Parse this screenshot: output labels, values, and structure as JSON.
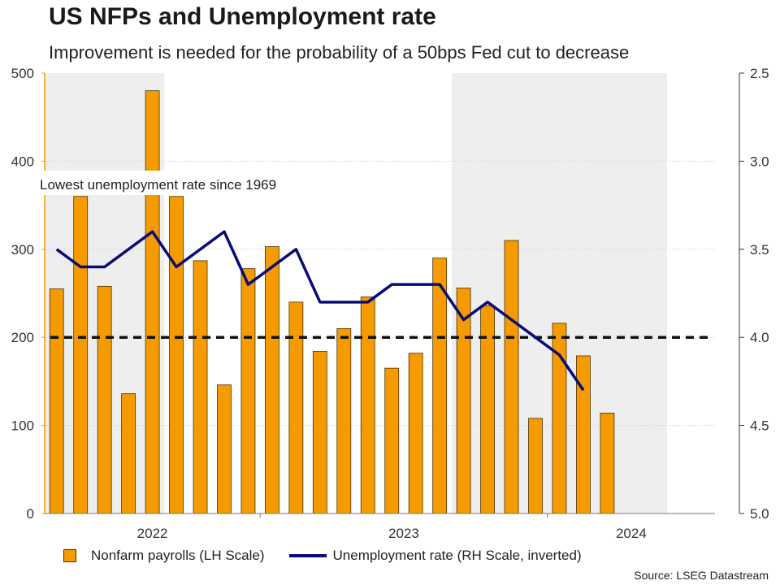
{
  "header": {
    "title": "US NFPs and Unemployment rate",
    "subtitle": "Improvement is needed for the probability of a 50bps Fed cut to decrease"
  },
  "source": "Source: LSEG Datastream",
  "legend": {
    "bars": "Nonfarm payrolls (LH Scale)",
    "line": "Unemployment rate (RH Scale, inverted)"
  },
  "colors": {
    "bar": "#f59b00",
    "bar_edge": "#4a2f00",
    "line": "#0a0a78",
    "reference": "#111111",
    "shade": "#eeeeee"
  },
  "chart_data": {
    "type": "bar",
    "x": [
      "2022-04",
      "2022-05",
      "2022-06",
      "2022-07",
      "2022-08",
      "2022-09",
      "2022-10",
      "2022-11",
      "2022-12",
      "2023-01",
      "2023-02",
      "2023-03",
      "2023-04",
      "2023-05",
      "2023-06",
      "2023-07",
      "2023-08",
      "2023-09",
      "2023-10",
      "2023-11",
      "2023-12",
      "2024-01",
      "2024-02",
      "2024-03",
      "2024-04",
      "2024-05",
      "2024-06",
      "2024-07"
    ],
    "series": [
      {
        "name": "Nonfarm payrolls (LH Scale)",
        "type": "bar",
        "axis": "left",
        "values": [
          255,
          360,
          258,
          136,
          480,
          360,
          287,
          146,
          278,
          303,
          240,
          184,
          210,
          246,
          165,
          182,
          290,
          256,
          236,
          310,
          108,
          216,
          179,
          114,
          null,
          null,
          null,
          null
        ]
      },
      {
        "name": "Unemployment rate (RH Scale, inverted)",
        "type": "line",
        "axis": "right",
        "values": [
          3.5,
          3.6,
          3.6,
          3.5,
          3.4,
          3.6,
          3.5,
          3.4,
          3.7,
          3.6,
          3.5,
          3.8,
          3.8,
          3.8,
          3.7,
          3.7,
          3.7,
          3.9,
          3.8,
          3.9,
          4.0,
          4.1,
          4.3,
          null,
          null,
          null,
          null,
          null
        ]
      }
    ],
    "bar_labels": [
      "2022-04",
      "2022-05",
      "2022-06",
      "2022-07",
      "2022-08",
      "2022-09",
      "2022-10",
      "2022-11",
      "2022-12",
      "2023-01",
      "2023-02",
      "2023-03",
      "2023-04",
      "2023-05",
      "2023-06",
      "2023-07",
      "2023-08",
      "2023-09",
      "2023-10",
      "2023-11",
      "2023-12",
      "2024-01",
      "2024-02",
      "2024-03"
    ],
    "line_labels": [
      "2022-04",
      "2022-05",
      "2022-06",
      "2022-07",
      "2022-08",
      "2022-09",
      "2022-10",
      "2022-11",
      "2022-12",
      "2023-01",
      "2023-02",
      "2023-03",
      "2023-04",
      "2023-05",
      "2023-06",
      "2023-07",
      "2023-08",
      "2023-09",
      "2023-10",
      "2023-11",
      "2023-12",
      "2024-01",
      "2024-02"
    ],
    "reference_line": {
      "axis": "left",
      "value": 200,
      "style": "dashed"
    },
    "annotation": "Lowest unemployment rate since 1969",
    "shaded_periods": [
      [
        "2022-04",
        "2022-08"
      ],
      [
        "2023-09",
        "2024-05"
      ]
    ],
    "x_ticks": [
      "2022",
      "2023",
      "2024"
    ],
    "left_axis": {
      "ylim": [
        0,
        500
      ],
      "ticks": [
        "0",
        "100",
        "200",
        "300",
        "400",
        "500"
      ]
    },
    "right_axis": {
      "ylim": [
        2.5,
        5.0
      ],
      "inverted": true,
      "ticks": [
        "2.5",
        "3.0",
        "3.5",
        "4.0",
        "4.5",
        "5.0"
      ]
    },
    "grid": "horizontal",
    "legend_position": "bottom"
  }
}
